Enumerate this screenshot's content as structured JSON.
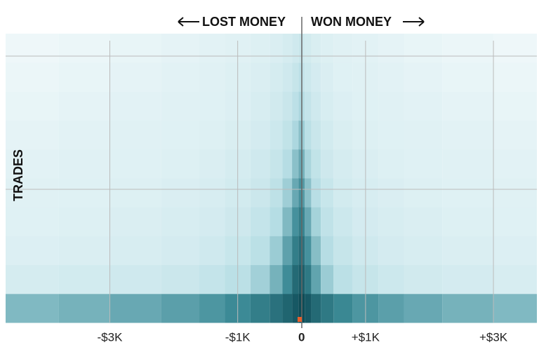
{
  "chart_data": {
    "type": "heatmap",
    "annotations": [
      "LOST MONEY",
      "WON MONEY"
    ],
    "ylabel": "TRADES",
    "xlim": [
      -4630,
      3680
    ],
    "xticks": [
      {
        "value": -3000,
        "label": "-$3K"
      },
      {
        "value": -1000,
        "label": "-$1K"
      },
      0,
      {
        "value": 1000,
        "label": "+$1K"
      },
      {
        "value": 3000,
        "label": "+$3K"
      }
    ],
    "grid": true,
    "xbins": [
      -4630,
      -3800,
      -3000,
      -2200,
      -1600,
      -1200,
      -800,
      -500,
      -300,
      -150,
      -50,
      0,
      50,
      150,
      300,
      500,
      800,
      1200,
      1600,
      2200,
      3000,
      3680
    ],
    "zlim": [
      0,
      100
    ],
    "colorscale": [
      [
        0,
        "#ffffff"
      ],
      [
        10,
        "#e2f2f5"
      ],
      [
        40,
        "#b3dce3"
      ],
      [
        75,
        "#3c8a96"
      ],
      [
        100,
        "#0e4c57"
      ]
    ],
    "z": [
      [
        55,
        58,
        62,
        66,
        70,
        75,
        80,
        85,
        90,
        95,
        100,
        100,
        95,
        88,
        82,
        76,
        70,
        66,
        62,
        58,
        55
      ],
      [
        18,
        20,
        22,
        25,
        29,
        35,
        45,
        58,
        74,
        88,
        93,
        92,
        82,
        64,
        47,
        35,
        28,
        24,
        21,
        19,
        17
      ],
      [
        14,
        15,
        17,
        19,
        22,
        27,
        35,
        47,
        65,
        80,
        87,
        85,
        72,
        53,
        38,
        28,
        22,
        19,
        17,
        15,
        14
      ],
      [
        12,
        13,
        15,
        17,
        19,
        23,
        29,
        39,
        55,
        72,
        80,
        77,
        62,
        44,
        32,
        24,
        19,
        17,
        15,
        13,
        12
      ],
      [
        11,
        12,
        13,
        15,
        17,
        20,
        25,
        33,
        46,
        62,
        72,
        68,
        52,
        37,
        27,
        20,
        17,
        15,
        13,
        12,
        11
      ],
      [
        10,
        11,
        12,
        13,
        15,
        18,
        22,
        28,
        38,
        52,
        62,
        58,
        43,
        31,
        23,
        18,
        15,
        13,
        12,
        11,
        10
      ],
      [
        9,
        10,
        11,
        12,
        13,
        16,
        19,
        24,
        31,
        42,
        52,
        47,
        35,
        26,
        20,
        16,
        13,
        12,
        11,
        10,
        9
      ],
      [
        8,
        9,
        10,
        11,
        12,
        14,
        17,
        21,
        26,
        34,
        42,
        38,
        29,
        22,
        17,
        14,
        12,
        11,
        10,
        9,
        8
      ],
      [
        7,
        8,
        9,
        10,
        11,
        13,
        15,
        18,
        22,
        28,
        34,
        30,
        24,
        19,
        15,
        12,
        11,
        10,
        9,
        8,
        7
      ],
      [
        6,
        7,
        8,
        9,
        10,
        11,
        13,
        15,
        18,
        22,
        26,
        24,
        20,
        16,
        13,
        11,
        10,
        9,
        8,
        7,
        6
      ]
    ]
  }
}
